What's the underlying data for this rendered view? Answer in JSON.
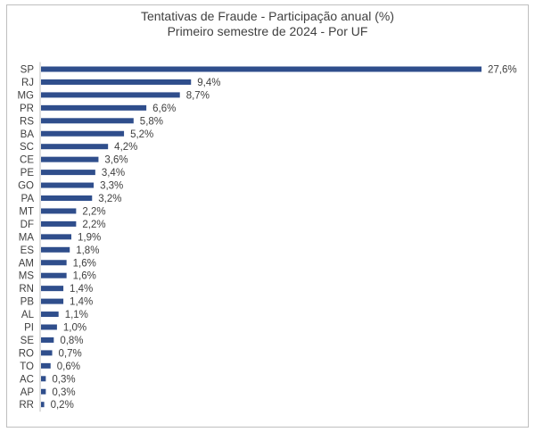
{
  "chart_data": {
    "type": "bar",
    "orientation": "horizontal",
    "title": "Tentativas de Fraude - Participação anual (%)",
    "subtitle": "Primeiro semestre de 2024 - Por UF",
    "categories": [
      "SP",
      "RJ",
      "MG",
      "PR",
      "RS",
      "BA",
      "SC",
      "CE",
      "PE",
      "GO",
      "PA",
      "MT",
      "DF",
      "MA",
      "ES",
      "AM",
      "MS",
      "RN",
      "PB",
      "AL",
      "PI",
      "SE",
      "RO",
      "TO",
      "AC",
      "AP",
      "RR"
    ],
    "values": [
      27.6,
      9.4,
      8.7,
      6.6,
      5.8,
      5.2,
      4.2,
      3.6,
      3.4,
      3.3,
      3.2,
      2.2,
      2.2,
      1.9,
      1.8,
      1.6,
      1.6,
      1.4,
      1.4,
      1.1,
      1.0,
      0.8,
      0.7,
      0.6,
      0.3,
      0.3,
      0.2
    ],
    "value_labels": [
      "27,6%",
      "9,4%",
      "8,7%",
      "6,6%",
      "5,8%",
      "5,2%",
      "4,2%",
      "3,6%",
      "3,4%",
      "3,3%",
      "3,2%",
      "2,2%",
      "2,2%",
      "1,9%",
      "1,8%",
      "1,6%",
      "1,6%",
      "1,4%",
      "1,4%",
      "1,1%",
      "1,0%",
      "0,8%",
      "0,7%",
      "0,6%",
      "0,3%",
      "0,3%",
      "0,2%"
    ],
    "bar_color": "#2f4e8c",
    "grid": false,
    "legend": "none"
  }
}
